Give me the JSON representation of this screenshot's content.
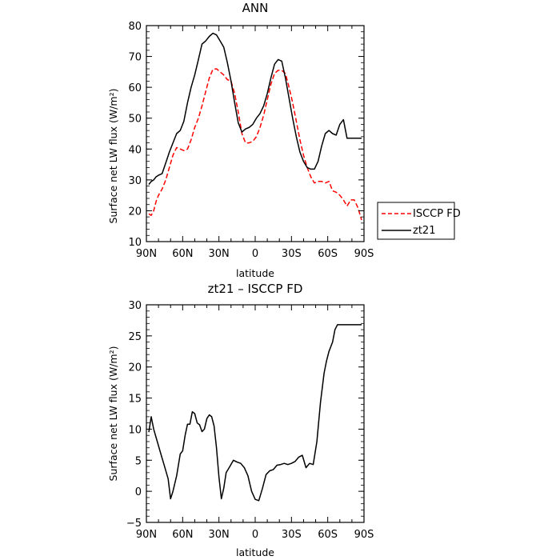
{
  "chart_data": [
    {
      "type": "line",
      "title": "ANN",
      "xlabel": "latitude",
      "ylabel": "Surface net LW flux (W/m²)",
      "xlim": [
        90,
        -90
      ],
      "ylim": [
        10,
        80
      ],
      "xticks": [
        90,
        60,
        30,
        0,
        -30,
        -60,
        -90
      ],
      "xtick_labels": [
        "90N",
        "60N",
        "30N",
        "0",
        "30S",
        "60S",
        "90S"
      ],
      "yticks": [
        10,
        20,
        30,
        40,
        50,
        60,
        70,
        80
      ],
      "ytick_labels": [
        "10",
        "20",
        "30",
        "40",
        "50",
        "60",
        "70",
        "80"
      ],
      "legend_position": "right",
      "series": [
        {
          "name": "ISCCP FD",
          "color": "#ff0000",
          "style": "dashed",
          "x": [
            88,
            86,
            84,
            82,
            80,
            77,
            74,
            71,
            68,
            65,
            62,
            59,
            56,
            53,
            50,
            47,
            44,
            41,
            38,
            35,
            32,
            29,
            26,
            23,
            20,
            17,
            14,
            11,
            8,
            5,
            2,
            -1,
            -4,
            -7,
            -10,
            -13,
            -16,
            -19,
            -22,
            -25,
            -28,
            -31,
            -34,
            -37,
            -40,
            -43,
            -46,
            -49,
            -52,
            -55,
            -58,
            -61,
            -64,
            -67,
            -70,
            -73,
            -76,
            -79,
            -82,
            -85,
            -88
          ],
          "y": [
            19,
            18.5,
            20,
            23,
            25,
            27,
            30,
            34,
            38,
            40.5,
            40,
            39.5,
            40,
            43,
            47,
            50,
            54,
            58.5,
            63,
            65.8,
            66,
            65,
            64,
            62.5,
            62,
            58,
            52,
            45,
            42,
            42,
            42.5,
            44,
            47,
            51,
            56,
            61,
            64.5,
            65.5,
            65.5,
            64.5,
            60,
            55,
            49,
            43,
            38,
            34,
            31,
            29,
            29.5,
            29.5,
            29,
            29.5,
            26.5,
            26,
            25,
            23.5,
            21.5,
            23.5,
            23.5,
            21,
            17
          ]
        },
        {
          "name": "zt21",
          "color": "#000000",
          "style": "solid",
          "x": [
            88,
            86,
            84,
            82,
            80,
            77,
            74,
            71,
            68,
            65,
            62,
            59,
            56,
            53,
            50,
            47,
            44,
            41,
            38,
            35,
            32,
            29,
            26,
            23,
            20,
            17,
            14,
            11,
            8,
            5,
            2,
            -1,
            -4,
            -7,
            -10,
            -13,
            -16,
            -19,
            -22,
            -25,
            -28,
            -31,
            -34,
            -37,
            -40,
            -43,
            -46,
            -49,
            -52,
            -55,
            -58,
            -61,
            -64,
            -67,
            -70,
            -73,
            -76,
            -79,
            -82,
            -85,
            -88
          ],
          "y": [
            28.5,
            29.5,
            30,
            31,
            31.5,
            32,
            35.5,
            39,
            42,
            45,
            46,
            49,
            55,
            60,
            64,
            69,
            74,
            75,
            76.5,
            77.5,
            77,
            75,
            73,
            68,
            62,
            55,
            48.5,
            45.5,
            46.5,
            47,
            48,
            50,
            51.5,
            54,
            58,
            63,
            67.5,
            69,
            68.5,
            63,
            56.5,
            50,
            44,
            39,
            36,
            34,
            33.5,
            33.5,
            36,
            41,
            45,
            46,
            45,
            44.5,
            48,
            49.5,
            43.5,
            43.5,
            43.5,
            43.5,
            43.5
          ]
        }
      ]
    },
    {
      "type": "line",
      "title": "zt21 – ISCCP FD",
      "xlabel": "latitude",
      "ylabel": "Surface net LW flux (W/m²)",
      "xlim": [
        90,
        -90
      ],
      "ylim": [
        -5,
        30
      ],
      "xticks": [
        90,
        60,
        30,
        0,
        -30,
        -60,
        -90
      ],
      "xtick_labels": [
        "90N",
        "60N",
        "30N",
        "0",
        "30S",
        "60S",
        "90S"
      ],
      "yticks": [
        -5,
        0,
        5,
        10,
        15,
        20,
        25,
        30
      ],
      "ytick_labels": [
        "−5",
        "0",
        "5",
        "10",
        "15",
        "20",
        "25",
        "30"
      ],
      "series": [
        {
          "color": "#000000",
          "style": "solid",
          "x": [
            88,
            86,
            84,
            81,
            78,
            75,
            72,
            70,
            68,
            65,
            62,
            60,
            58,
            56,
            54,
            52,
            50,
            48,
            46,
            44,
            42,
            40,
            38,
            36,
            34,
            32,
            30,
            28,
            26,
            24,
            21,
            18,
            15,
            12,
            9,
            6,
            3,
            0,
            -3,
            -6,
            -9,
            -12,
            -15,
            -18,
            -21,
            -24,
            -27,
            -30,
            -33,
            -36,
            -39,
            -42,
            -45,
            -48,
            -51,
            -54,
            -57,
            -59,
            -61,
            -64,
            -66,
            -68,
            -70,
            -72,
            -74,
            -77,
            -80,
            -83,
            -86,
            -88
          ],
          "y": [
            9.5,
            12,
            10,
            8,
            6,
            4,
            2,
            -1.2,
            0,
            2.5,
            6,
            6.5,
            9,
            10.8,
            10.8,
            12.8,
            12.5,
            11,
            10.7,
            9.6,
            10,
            11.7,
            12.3,
            12,
            10.5,
            7,
            2.3,
            -1.2,
            0.5,
            3,
            4,
            5,
            4.7,
            4.5,
            3.8,
            2.5,
            0,
            -1.3,
            -1.5,
            0.5,
            2.7,
            3.3,
            3.5,
            4.2,
            4.3,
            4.5,
            4.3,
            4.5,
            4.8,
            5.5,
            5.8,
            3.8,
            4.5,
            4.3,
            8,
            14.3,
            19,
            21,
            22.5,
            24,
            26,
            26.8,
            26.8,
            26.8,
            26.8,
            26.8,
            26.8,
            26.8,
            26.8,
            26.8
          ]
        }
      ]
    }
  ]
}
